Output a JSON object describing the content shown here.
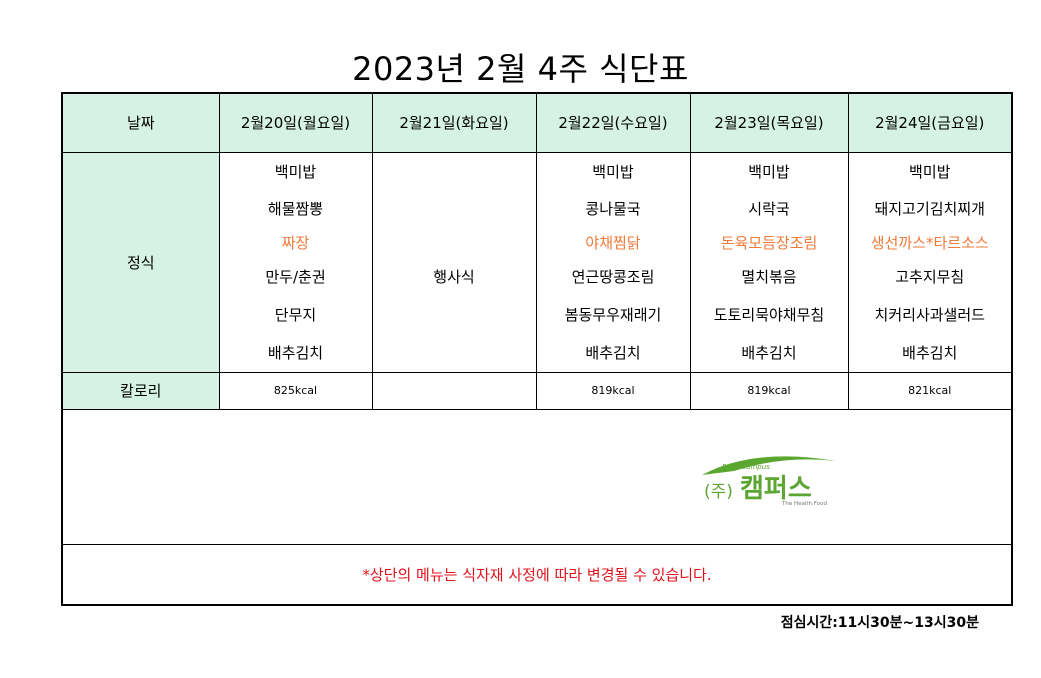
{
  "title": "2023년 2월 4주 식단표",
  "headers": [
    "날짜",
    "2월20일(월요일)",
    "2월21일(화요일)",
    "2월22일(수요일)",
    "2월23일(목요일)",
    "2월24일(금요일)"
  ],
  "row_label_main": "정식",
  "rows": [
    [
      "백미밥",
      "",
      "백미밥",
      "백미밥",
      "백미밥"
    ],
    [
      "해물짬뽕",
      "",
      "콩나물국",
      "시락국",
      "돼지고기김치찌개"
    ],
    [
      "짜장",
      "",
      "야채찜닭",
      "돈육모듬장조림",
      "생선까스*타르소스"
    ],
    [
      "만두/춘권",
      "행사식",
      "연근땅콩조림",
      "멸치볶음",
      "고추지무침"
    ],
    [
      "단무지",
      "",
      "봄동무우재래기",
      "도토리묵야채무침",
      "치커리사과샐러드"
    ],
    [
      "배추김치",
      "",
      "배추김치",
      "배추김치",
      "배추김치"
    ]
  ],
  "calorie_label": "칼로리",
  "calories": [
    "825kcal",
    "",
    "819kcal",
    "819kcal",
    "821kcal"
  ],
  "logo": {
    "mark": "(주)",
    "name": "캠퍼스",
    "tagline": "The Health Food",
    "arc_text": "Food Campus"
  },
  "note": "*상단의 메뉴는 식자재 사정에 따라 변경될 수 있습니다.",
  "lunch_time": "점심시간:11시30분~13시30분",
  "colors": {
    "header_bg": "#d5f2e4",
    "highlight": "#f07a3a",
    "note": "#e0121c",
    "logo_green": "#5aa630"
  }
}
